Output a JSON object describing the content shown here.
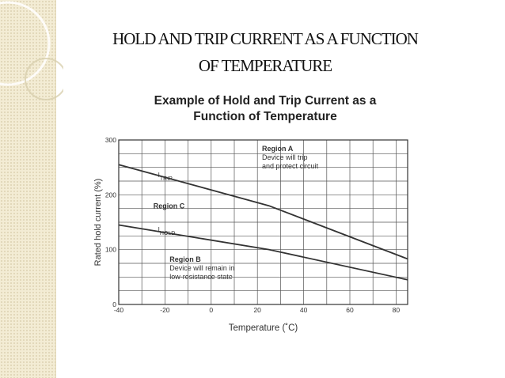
{
  "slide": {
    "title_line1": "HOLD AND TRIP CURRENT AS A FUNCTION",
    "title_line2": "OF  TEMPERATURE"
  },
  "chart_data": {
    "type": "line",
    "title_line1": "Example of Hold and Trip Current as a",
    "title_line2": "Function of Temperature",
    "xlabel": "Temperature (˚C)",
    "ylabel": "Rated hold current (%)",
    "xlim": [
      -40,
      85
    ],
    "ylim": [
      0,
      300
    ],
    "x_ticks": [
      -40,
      -20,
      0,
      20,
      40,
      60,
      80
    ],
    "y_ticks": [
      0,
      100,
      200,
      300
    ],
    "grid": true,
    "series": [
      {
        "name": "I",
        "subscript": "TRIP",
        "x": [
          -40,
          25,
          85
        ],
        "y": [
          255,
          180,
          83
        ]
      },
      {
        "name": "I",
        "subscript": "HOLD",
        "x": [
          -40,
          25,
          85
        ],
        "y": [
          145,
          100,
          45
        ]
      }
    ],
    "annotations": [
      {
        "id": "region-a",
        "title": "Region A",
        "lines": [
          "Device will trip",
          "and protect circuit"
        ],
        "x": 22,
        "y": 280
      },
      {
        "id": "region-c",
        "title": "Region C",
        "lines": [],
        "x": -25,
        "y": 175
      },
      {
        "id": "region-b",
        "title": "Region B",
        "lines": [
          "Device will remain in",
          "low-resistance state"
        ],
        "x": -18,
        "y": 78
      }
    ],
    "line_color": "#333333"
  }
}
